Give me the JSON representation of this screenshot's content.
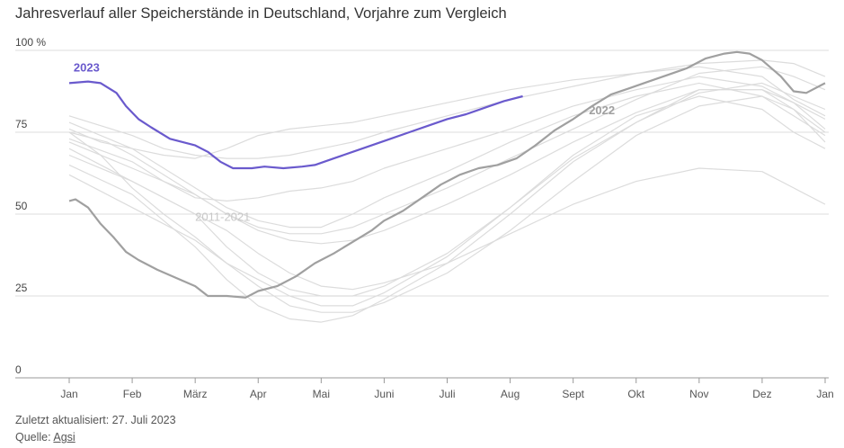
{
  "title": "Jahresverlauf aller Speicherstände in Deutschland, Vorjahre zum Vergleich",
  "footer": {
    "updated": "Zuletzt aktualisiert: 27. Juli 2023",
    "source_prefix": "Quelle: ",
    "source_link": "Agsi"
  },
  "chart_data": {
    "type": "line",
    "ylim": [
      0,
      100
    ],
    "y_ticks": [
      0,
      25,
      50,
      75,
      100
    ],
    "y_unit": "%",
    "x_ticks": [
      "Jan",
      "Feb",
      "März",
      "Apr",
      "Mai",
      "Juni",
      "Juli",
      "Aug",
      "Sept",
      "Okt",
      "Nov",
      "Dez",
      "Jan"
    ],
    "x_unit": "month (0 = 1. Jan, 12 = 1. Jan Folgejahr)",
    "labels": {
      "s2023": "2023",
      "s2022": "2022",
      "bg": "2011-2021"
    },
    "colors": {
      "s2023": "#6a5acd",
      "s2022": "#a0a0a0",
      "background": "#dcdcdc",
      "grid": "#dddddd",
      "axis": "#999999"
    },
    "series": [
      {
        "name": "2023",
        "points": [
          [
            0,
            90
          ],
          [
            0.3,
            90.5
          ],
          [
            0.5,
            90
          ],
          [
            0.75,
            87
          ],
          [
            0.9,
            83
          ],
          [
            1.1,
            79
          ],
          [
            1.3,
            76.5
          ],
          [
            1.6,
            73
          ],
          [
            2.0,
            71
          ],
          [
            2.2,
            69
          ],
          [
            2.4,
            66
          ],
          [
            2.6,
            64
          ],
          [
            2.9,
            64
          ],
          [
            3.1,
            64.5
          ],
          [
            3.4,
            64
          ],
          [
            3.7,
            64.5
          ],
          [
            3.9,
            65
          ],
          [
            4.2,
            67
          ],
          [
            4.5,
            69
          ],
          [
            4.8,
            71
          ],
          [
            5.1,
            73
          ],
          [
            5.4,
            75
          ],
          [
            5.7,
            77
          ],
          [
            6.0,
            79
          ],
          [
            6.3,
            80.5
          ],
          [
            6.6,
            82.5
          ],
          [
            6.9,
            84.5
          ],
          [
            7.2,
            86
          ]
        ]
      },
      {
        "name": "2022",
        "points": [
          [
            0,
            54
          ],
          [
            0.1,
            54.5
          ],
          [
            0.3,
            52
          ],
          [
            0.5,
            47
          ],
          [
            0.7,
            43
          ],
          [
            0.9,
            38.5
          ],
          [
            1.1,
            36
          ],
          [
            1.4,
            33
          ],
          [
            1.7,
            30.5
          ],
          [
            2.0,
            28
          ],
          [
            2.2,
            25
          ],
          [
            2.5,
            25
          ],
          [
            2.8,
            24.5
          ],
          [
            3.0,
            26.5
          ],
          [
            3.3,
            28
          ],
          [
            3.6,
            31
          ],
          [
            3.9,
            35
          ],
          [
            4.2,
            38
          ],
          [
            4.5,
            41.5
          ],
          [
            4.8,
            45
          ],
          [
            5.0,
            48
          ],
          [
            5.3,
            51
          ],
          [
            5.6,
            55
          ],
          [
            5.9,
            59
          ],
          [
            6.2,
            62
          ],
          [
            6.5,
            64
          ],
          [
            6.8,
            65
          ],
          [
            7.1,
            67
          ],
          [
            7.4,
            71
          ],
          [
            7.7,
            75.5
          ],
          [
            8.0,
            79
          ],
          [
            8.3,
            83
          ],
          [
            8.6,
            86.5
          ],
          [
            8.9,
            88.5
          ],
          [
            9.2,
            90.5
          ],
          [
            9.5,
            92.5
          ],
          [
            9.8,
            94.5
          ],
          [
            10.1,
            97.5
          ],
          [
            10.4,
            99
          ],
          [
            10.6,
            99.5
          ],
          [
            10.8,
            99
          ],
          [
            11.0,
            97
          ],
          [
            11.3,
            92
          ],
          [
            11.5,
            87.5
          ],
          [
            11.7,
            87
          ],
          [
            12.0,
            90
          ]
        ]
      }
    ],
    "background_series": [
      [
        [
          0,
          78
        ],
        [
          1,
          70
        ],
        [
          1.5,
          64
        ],
        [
          2,
          58
        ],
        [
          2.5,
          52
        ],
        [
          3,
          48
        ],
        [
          3.5,
          46
        ],
        [
          4,
          46
        ],
        [
          4.5,
          50
        ],
        [
          5,
          55
        ],
        [
          6,
          63
        ],
        [
          7,
          72
        ],
        [
          8,
          80
        ],
        [
          9,
          86
        ],
        [
          10,
          90
        ],
        [
          11,
          86
        ],
        [
          11.5,
          80
        ],
        [
          12,
          74
        ]
      ],
      [
        [
          0,
          73
        ],
        [
          1,
          66
        ],
        [
          1.5,
          60
        ],
        [
          2,
          55
        ],
        [
          2.5,
          54
        ],
        [
          3,
          55
        ],
        [
          3.5,
          57
        ],
        [
          4,
          58
        ],
        [
          4.5,
          60
        ],
        [
          5,
          64
        ],
        [
          6,
          70
        ],
        [
          7,
          76
        ],
        [
          8,
          83
        ],
        [
          9,
          88
        ],
        [
          10,
          92
        ],
        [
          11,
          89
        ],
        [
          11.5,
          84
        ],
        [
          12,
          79
        ]
      ],
      [
        [
          0,
          75
        ],
        [
          0.5,
          68
        ],
        [
          1,
          58
        ],
        [
          1.5,
          50
        ],
        [
          2,
          43
        ],
        [
          2.5,
          35
        ],
        [
          3,
          30
        ],
        [
          3.5,
          25
        ],
        [
          4,
          22
        ],
        [
          4.5,
          22
        ],
        [
          5,
          26
        ],
        [
          6,
          37
        ],
        [
          7,
          52
        ],
        [
          8,
          68
        ],
        [
          9,
          80
        ],
        [
          10,
          86
        ],
        [
          11,
          82
        ],
        [
          11.5,
          75
        ],
        [
          12,
          70
        ]
      ],
      [
        [
          0,
          65
        ],
        [
          1,
          56
        ],
        [
          1.5,
          48
        ],
        [
          2,
          40
        ],
        [
          2.5,
          30
        ],
        [
          3,
          22
        ],
        [
          3.5,
          18
        ],
        [
          4,
          17
        ],
        [
          4.5,
          19
        ],
        [
          5,
          24
        ],
        [
          6,
          35
        ],
        [
          7,
          50
        ],
        [
          8,
          66
        ],
        [
          9,
          78
        ],
        [
          10,
          88
        ],
        [
          11,
          88
        ],
        [
          11.5,
          84
        ],
        [
          12,
          76
        ]
      ],
      [
        [
          0,
          70
        ],
        [
          1,
          60
        ],
        [
          2,
          50
        ],
        [
          2.5,
          40
        ],
        [
          3,
          32
        ],
        [
          3.5,
          27
        ],
        [
          4,
          25
        ],
        [
          4.5,
          25
        ],
        [
          5,
          28
        ],
        [
          6,
          38
        ],
        [
          7,
          52
        ],
        [
          8,
          67
        ],
        [
          9,
          78
        ],
        [
          10,
          87
        ],
        [
          11,
          90
        ],
        [
          11.5,
          86
        ],
        [
          12,
          82
        ]
      ],
      [
        [
          0,
          75
        ],
        [
          0.6,
          72
        ],
        [
          1,
          68
        ],
        [
          1.5,
          62
        ],
        [
          2,
          56
        ],
        [
          2.5,
          50
        ],
        [
          3,
          46
        ],
        [
          3.5,
          44
        ],
        [
          4,
          44
        ],
        [
          4.5,
          46
        ],
        [
          5,
          50
        ],
        [
          6,
          58
        ],
        [
          7,
          67
        ],
        [
          8,
          76
        ],
        [
          9,
          85
        ],
        [
          10,
          93
        ],
        [
          11,
          95
        ],
        [
          11.5,
          92
        ],
        [
          12,
          88
        ]
      ],
      [
        [
          0,
          80
        ],
        [
          0.5,
          77
        ],
        [
          1,
          74
        ],
        [
          1.5,
          70
        ],
        [
          2,
          68
        ],
        [
          2.5,
          67
        ],
        [
          3,
          67
        ],
        [
          3.5,
          68
        ],
        [
          4,
          70
        ],
        [
          4.5,
          72
        ],
        [
          5,
          75
        ],
        [
          6,
          80
        ],
        [
          7,
          85
        ],
        [
          8,
          89
        ],
        [
          9,
          93
        ],
        [
          10,
          96
        ],
        [
          11,
          97
        ],
        [
          11.5,
          96
        ],
        [
          12,
          92
        ]
      ],
      [
        [
          0,
          68
        ],
        [
          1,
          60
        ],
        [
          2,
          50
        ],
        [
          2.5,
          45
        ],
        [
          3,
          38
        ],
        [
          3.5,
          32
        ],
        [
          4,
          28
        ],
        [
          4.5,
          27
        ],
        [
          5,
          29
        ],
        [
          6,
          35
        ],
        [
          7,
          44
        ],
        [
          8,
          53
        ],
        [
          9,
          60
        ],
        [
          10,
          64
        ],
        [
          11,
          63
        ],
        [
          11.5,
          58
        ],
        [
          12,
          53
        ]
      ],
      [
        [
          0,
          76
        ],
        [
          0.5,
          72
        ],
        [
          1,
          70
        ],
        [
          1.5,
          68
        ],
        [
          2,
          67
        ],
        [
          2.5,
          70
        ],
        [
          3,
          74
        ],
        [
          3.5,
          76
        ],
        [
          4,
          77
        ],
        [
          4.5,
          78
        ],
        [
          5,
          80
        ],
        [
          6,
          84
        ],
        [
          7,
          88
        ],
        [
          8,
          91
        ],
        [
          9,
          93
        ],
        [
          10,
          95
        ],
        [
          11,
          92
        ],
        [
          11.5,
          85
        ],
        [
          12,
          80
        ]
      ],
      [
        [
          0,
          62
        ],
        [
          1,
          52
        ],
        [
          2,
          42
        ],
        [
          2.5,
          35
        ],
        [
          3,
          28
        ],
        [
          3.5,
          22
        ],
        [
          4,
          20
        ],
        [
          4.5,
          20
        ],
        [
          5,
          23
        ],
        [
          6,
          32
        ],
        [
          7,
          45
        ],
        [
          8,
          60
        ],
        [
          9,
          74
        ],
        [
          10,
          83
        ],
        [
          11,
          86
        ],
        [
          11.5,
          82
        ],
        [
          12,
          75
        ]
      ],
      [
        [
          0,
          72
        ],
        [
          1,
          64
        ],
        [
          2,
          56
        ],
        [
          2.5,
          50
        ],
        [
          3,
          45
        ],
        [
          3.5,
          42
        ],
        [
          4,
          41
        ],
        [
          4.5,
          42
        ],
        [
          5,
          45
        ],
        [
          6,
          53
        ],
        [
          7,
          62
        ],
        [
          8,
          72
        ],
        [
          9,
          81
        ],
        [
          10,
          88
        ],
        [
          11,
          88
        ],
        [
          11.5,
          82
        ],
        [
          12,
          72
        ]
      ]
    ]
  }
}
